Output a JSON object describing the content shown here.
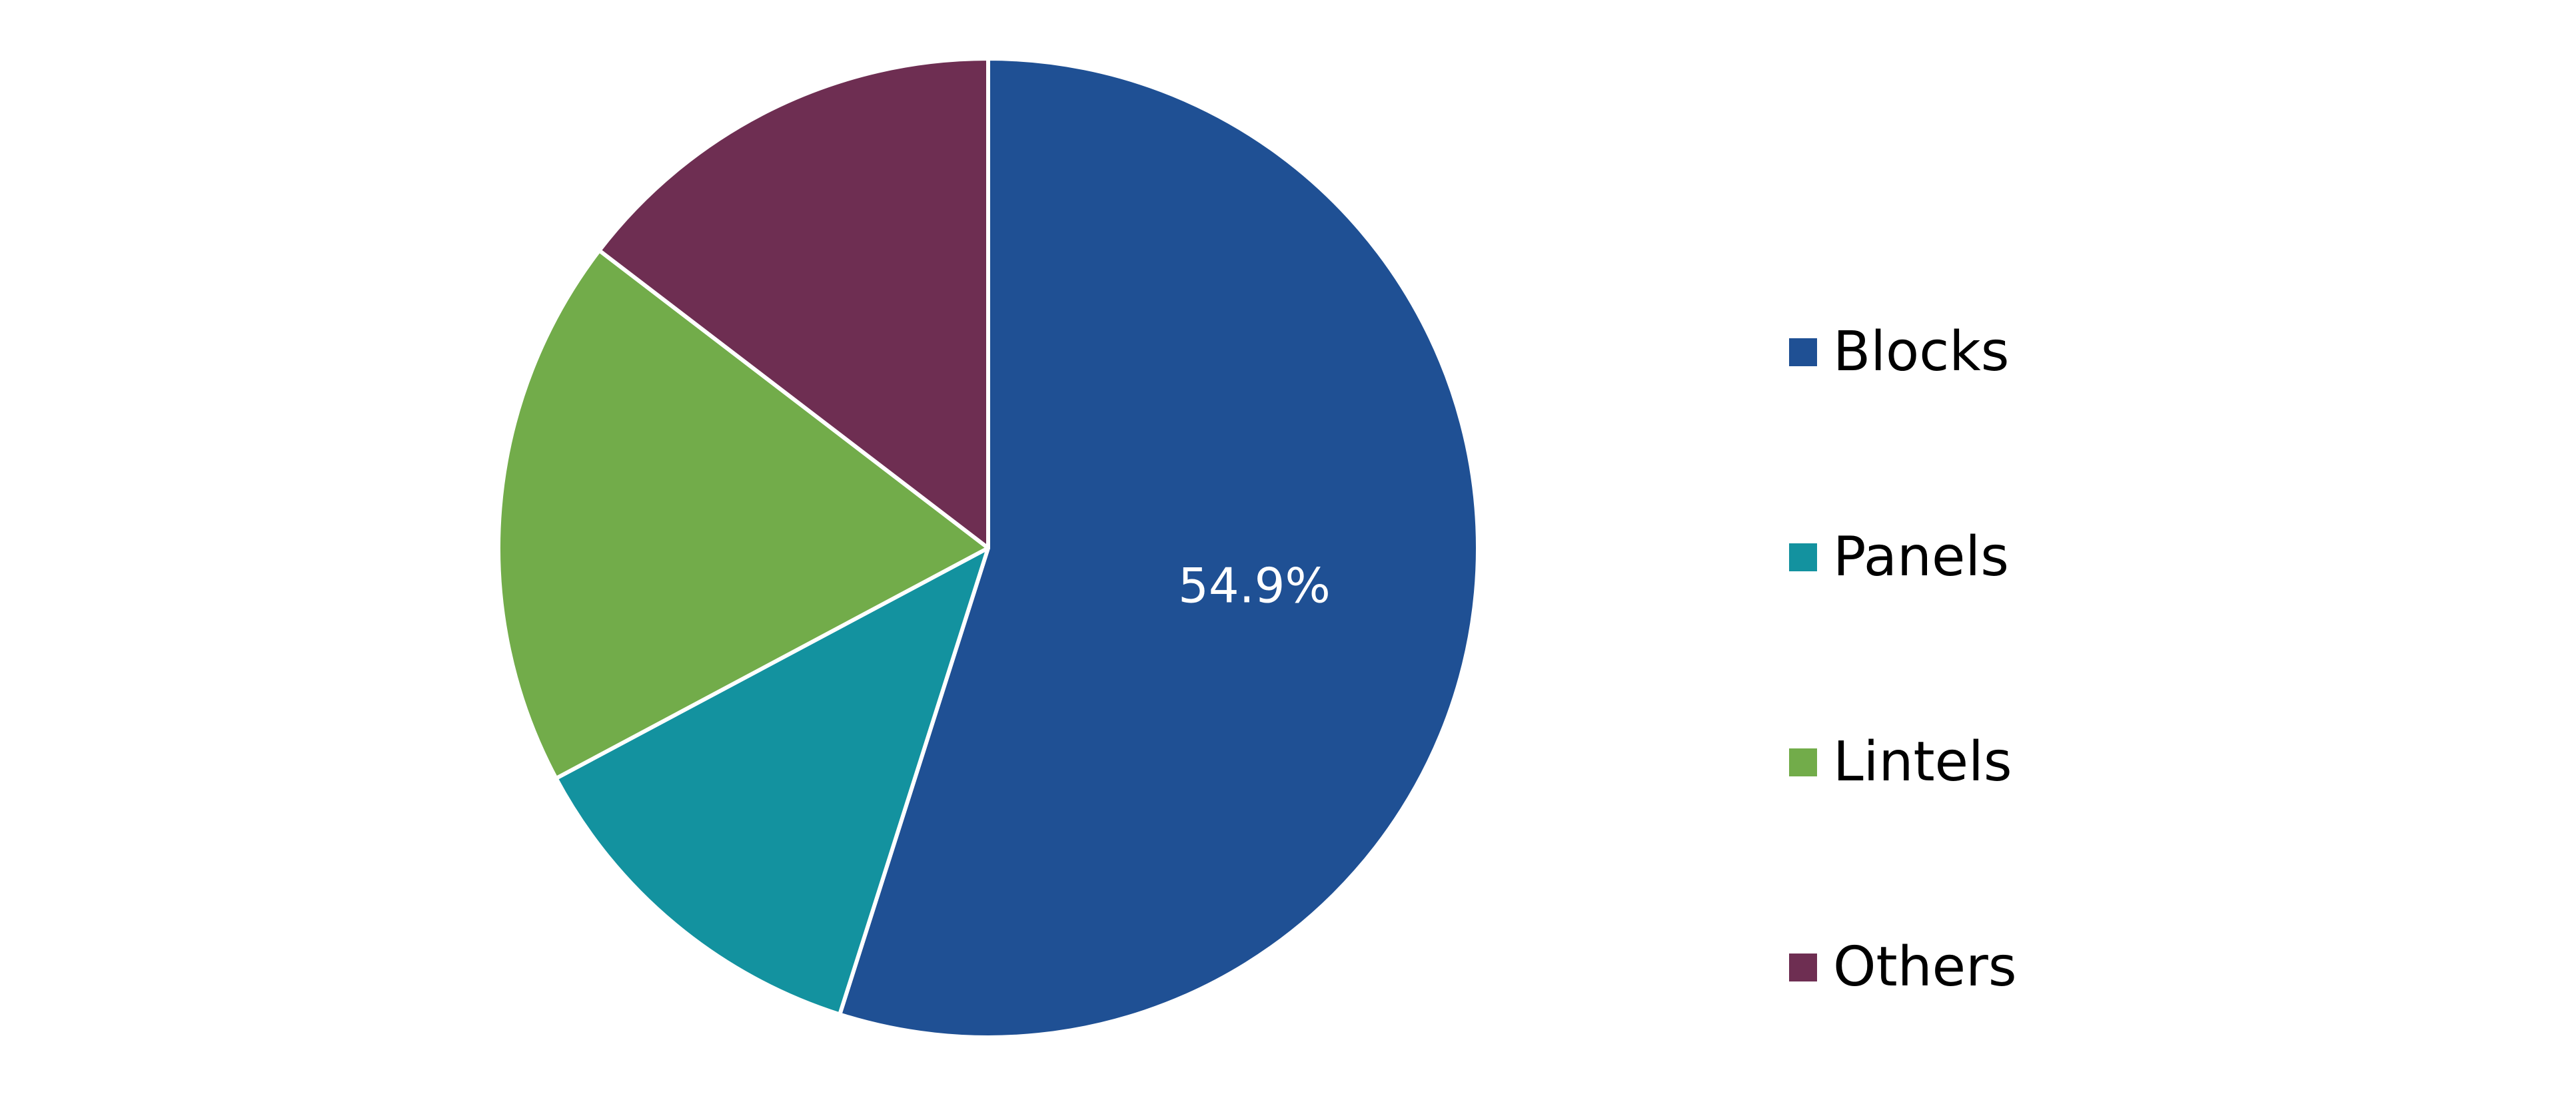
{
  "chart_data": {
    "type": "pie",
    "title": "",
    "slices": [
      {
        "name": "Blocks",
        "value": 54.9,
        "color": "#1f5094",
        "label": "54.9%"
      },
      {
        "name": "Panels",
        "value": 12.3,
        "color": "#13929f",
        "label": ""
      },
      {
        "name": "Lintels",
        "value": 18.2,
        "color": "#72ac4a",
        "label": ""
      },
      {
        "name": "Others",
        "value": 14.6,
        "color": "#6e2e52",
        "label": ""
      }
    ],
    "start": "12 o'clock",
    "direction": "clockwise",
    "legend": {
      "position": "right"
    }
  }
}
